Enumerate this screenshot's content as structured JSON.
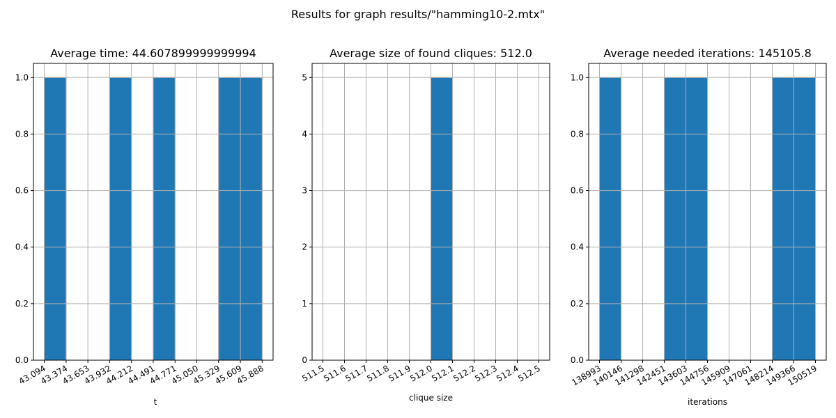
{
  "figure": {
    "suptitle": "Results for graph results/\"hamming10-2.mtx\""
  },
  "chart_data": [
    {
      "type": "bar",
      "title": "Average time: 44.607899999999994",
      "xlabel": "t",
      "ylabel": "",
      "xlim": [
        42.955,
        46.028
      ],
      "ylim": [
        0,
        1.05
      ],
      "grid": true,
      "bin_edges": [
        43.094,
        43.374,
        43.653,
        43.932,
        44.212,
        44.491,
        44.771,
        45.05,
        45.329,
        45.609,
        45.888
      ],
      "xtick_labels": [
        "43.094",
        "43.374",
        "43.653",
        "43.932",
        "44.212",
        "44.491",
        "44.771",
        "45.050",
        "45.329",
        "45.609",
        "45.888"
      ],
      "values": [
        1,
        0,
        0,
        1,
        0,
        1,
        0,
        0,
        1,
        1
      ],
      "yticks": [
        0.0,
        0.2,
        0.4,
        0.6,
        0.8,
        1.0
      ],
      "ytick_labels": [
        "0.0",
        "0.2",
        "0.4",
        "0.6",
        "0.8",
        "1.0"
      ],
      "bar_color": "#1f77b4"
    },
    {
      "type": "bar",
      "title": "Average size of found cliques: 512.0",
      "xlabel": "clique size",
      "ylabel": "",
      "xlim": [
        511.45,
        512.55
      ],
      "ylim": [
        0,
        5.25
      ],
      "grid": true,
      "bin_edges": [
        511.5,
        511.6,
        511.7,
        511.8,
        511.9,
        512.0,
        512.1,
        512.2,
        512.3,
        512.4,
        512.5
      ],
      "xtick_labels": [
        "511.5",
        "511.6",
        "511.7",
        "511.8",
        "511.9",
        "512.0",
        "512.1",
        "512.2",
        "512.3",
        "512.4",
        "512.5"
      ],
      "values": [
        0,
        0,
        0,
        0,
        0,
        5,
        0,
        0,
        0,
        0
      ],
      "yticks": [
        0,
        1,
        2,
        3,
        4,
        5
      ],
      "ytick_labels": [
        "0",
        "1",
        "2",
        "3",
        "4",
        "5"
      ],
      "bar_color": "#1f77b4"
    },
    {
      "type": "bar",
      "title": "Average needed iterations: 145105.8",
      "xlabel": "iterations",
      "ylabel": "",
      "xlim": [
        138417,
        151095
      ],
      "ylim": [
        0,
        1.05
      ],
      "grid": true,
      "bin_edges": [
        138993,
        140146,
        141298,
        142451,
        143603,
        144756,
        145909,
        147061,
        148214,
        149366,
        150519
      ],
      "xtick_labels": [
        "138993",
        "140146",
        "141298",
        "142451",
        "143603",
        "144756",
        "145909",
        "147061",
        "148214",
        "149366",
        "150519"
      ],
      "values": [
        1,
        0,
        0,
        1,
        1,
        0,
        0,
        0,
        1,
        1
      ],
      "yticks": [
        0.0,
        0.2,
        0.4,
        0.6,
        0.8,
        1.0
      ],
      "ytick_labels": [
        "0.0",
        "0.2",
        "0.4",
        "0.6",
        "0.8",
        "1.0"
      ],
      "bar_color": "#1f77b4"
    }
  ]
}
